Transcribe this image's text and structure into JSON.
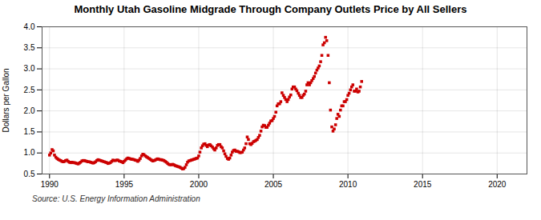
{
  "chart_data": {
    "type": "scatter",
    "title": "Monthly Utah Gasoline Midgrade Through Company Outlets Price by All Sellers",
    "ylabel": "Dollars per Gallon",
    "source": "Source: U.S. Energy Information Administration",
    "color": "#CC0000",
    "marker": "square",
    "grid": true,
    "xlim": [
      1989.5,
      2022
    ],
    "ylim": [
      0.5,
      4.0
    ],
    "xticks": [
      1990,
      1995,
      2000,
      2005,
      2010,
      2015,
      2020
    ],
    "yticks": [
      0.5,
      {
        "value": 1.0,
        "label": "1.0"
      },
      1.5,
      {
        "value": 2.0,
        "label": "2.0"
      },
      2.5,
      {
        "value": 3.0,
        "label": "3.0"
      },
      3.5,
      {
        "value": 4.0,
        "label": "4.0"
      }
    ],
    "x": [
      1990.0,
      1990.08,
      1990.17,
      1990.25,
      1990.33,
      1990.42,
      1990.5,
      1990.58,
      1990.67,
      1990.75,
      1990.83,
      1990.92,
      1991.0,
      1991.08,
      1991.17,
      1991.25,
      1991.33,
      1991.42,
      1991.5,
      1991.58,
      1991.67,
      1991.75,
      1991.83,
      1991.92,
      1992.0,
      1992.08,
      1992.17,
      1992.25,
      1992.33,
      1992.42,
      1992.5,
      1992.58,
      1992.67,
      1992.75,
      1992.83,
      1992.92,
      1993.0,
      1993.08,
      1993.17,
      1993.25,
      1993.33,
      1993.42,
      1993.5,
      1993.58,
      1993.67,
      1993.75,
      1993.83,
      1993.92,
      1994.0,
      1994.08,
      1994.17,
      1994.25,
      1994.33,
      1994.42,
      1994.5,
      1994.58,
      1994.67,
      1994.75,
      1994.83,
      1994.92,
      1995.0,
      1995.08,
      1995.17,
      1995.25,
      1995.33,
      1995.42,
      1995.5,
      1995.58,
      1995.67,
      1995.75,
      1995.83,
      1995.92,
      1996.0,
      1996.08,
      1996.17,
      1996.25,
      1996.33,
      1996.42,
      1996.5,
      1996.58,
      1996.67,
      1996.75,
      1996.83,
      1996.92,
      1997.0,
      1997.08,
      1997.17,
      1997.25,
      1997.33,
      1997.42,
      1997.5,
      1997.58,
      1997.67,
      1997.75,
      1997.83,
      1997.92,
      1998.0,
      1998.08,
      1998.17,
      1998.25,
      1998.33,
      1998.42,
      1998.5,
      1998.58,
      1998.67,
      1998.75,
      1998.83,
      1998.92,
      1999.0,
      1999.08,
      1999.17,
      1999.25,
      1999.33,
      1999.42,
      1999.5,
      1999.58,
      1999.67,
      1999.75,
      1999.83,
      1999.92,
      2000.0,
      2000.08,
      2000.17,
      2000.25,
      2000.33,
      2000.42,
      2000.5,
      2000.58,
      2000.67,
      2000.75,
      2000.83,
      2000.92,
      2001.0,
      2001.08,
      2001.17,
      2001.25,
      2001.33,
      2001.42,
      2001.5,
      2001.58,
      2001.67,
      2001.75,
      2001.83,
      2001.92,
      2002.0,
      2002.08,
      2002.17,
      2002.25,
      2002.33,
      2002.42,
      2002.5,
      2002.58,
      2002.67,
      2002.75,
      2002.83,
      2002.92,
      2003.0,
      2003.08,
      2003.17,
      2003.25,
      2003.33,
      2003.42,
      2003.5,
      2003.58,
      2003.67,
      2003.75,
      2003.83,
      2003.92,
      2004.0,
      2004.08,
      2004.17,
      2004.25,
      2004.33,
      2004.42,
      2004.5,
      2004.58,
      2004.67,
      2004.75,
      2004.83,
      2004.92,
      2005.0,
      2005.08,
      2005.17,
      2005.25,
      2005.33,
      2005.42,
      2005.5,
      2005.58,
      2005.67,
      2005.75,
      2005.83,
      2005.92,
      2006.0,
      2006.08,
      2006.17,
      2006.25,
      2006.33,
      2006.42,
      2006.5,
      2006.58,
      2006.67,
      2006.75,
      2006.83,
      2006.92,
      2007.0,
      2007.08,
      2007.17,
      2007.25,
      2007.33,
      2007.42,
      2007.5,
      2007.58,
      2007.67,
      2007.75,
      2007.83,
      2007.92,
      2008.0,
      2008.08,
      2008.17,
      2008.25,
      2008.33,
      2008.42,
      2008.5,
      2008.58,
      2008.67,
      2008.75,
      2008.83,
      2008.92,
      2009.0,
      2009.08,
      2009.17,
      2009.25,
      2009.33,
      2009.42,
      2009.5,
      2009.58,
      2009.67,
      2009.75,
      2009.83,
      2009.92,
      2010.0,
      2010.08,
      2010.17,
      2010.25,
      2010.33,
      2010.42,
      2010.5,
      2010.58,
      2010.67,
      2010.75,
      2010.83,
      2010.92
    ],
    "values": [
      0.95,
      1.0,
      1.08,
      1.05,
      0.95,
      0.9,
      0.87,
      0.85,
      0.83,
      0.82,
      0.8,
      0.79,
      0.8,
      0.82,
      0.83,
      0.8,
      0.78,
      0.77,
      0.78,
      0.77,
      0.77,
      0.76,
      0.75,
      0.74,
      0.76,
      0.78,
      0.81,
      0.82,
      0.82,
      0.81,
      0.8,
      0.79,
      0.79,
      0.78,
      0.77,
      0.76,
      0.77,
      0.79,
      0.82,
      0.84,
      0.83,
      0.82,
      0.81,
      0.8,
      0.79,
      0.78,
      0.77,
      0.75,
      0.76,
      0.77,
      0.8,
      0.83,
      0.82,
      0.82,
      0.83,
      0.83,
      0.81,
      0.8,
      0.79,
      0.77,
      0.8,
      0.83,
      0.86,
      0.88,
      0.87,
      0.86,
      0.85,
      0.85,
      0.84,
      0.83,
      0.82,
      0.8,
      0.83,
      0.87,
      0.93,
      0.97,
      0.96,
      0.93,
      0.91,
      0.89,
      0.87,
      0.85,
      0.83,
      0.81,
      0.82,
      0.83,
      0.85,
      0.86,
      0.85,
      0.84,
      0.84,
      0.83,
      0.82,
      0.8,
      0.78,
      0.75,
      0.73,
      0.72,
      0.72,
      0.73,
      0.72,
      0.7,
      0.69,
      0.68,
      0.67,
      0.66,
      0.64,
      0.62,
      0.63,
      0.66,
      0.72,
      0.78,
      0.81,
      0.82,
      0.83,
      0.84,
      0.85,
      0.86,
      0.87,
      0.88,
      0.93,
      1.02,
      1.12,
      1.17,
      1.21,
      1.22,
      1.18,
      1.15,
      1.19,
      1.2,
      1.17,
      1.14,
      1.1,
      1.07,
      1.12,
      1.18,
      1.2,
      1.2,
      1.15,
      1.12,
      1.05,
      0.98,
      0.92,
      0.87,
      0.85,
      0.88,
      0.95,
      1.02,
      1.06,
      1.07,
      1.04,
      1.04,
      1.03,
      1.01,
      1.01,
      1.02,
      1.07,
      1.12,
      1.22,
      1.38,
      1.32,
      1.22,
      1.2,
      1.23,
      1.27,
      1.28,
      1.3,
      1.32,
      1.37,
      1.42,
      1.52,
      1.62,
      1.66,
      1.65,
      1.61,
      1.61,
      1.66,
      1.71,
      1.76,
      1.77,
      1.82,
      1.87,
      1.97,
      2.12,
      2.17,
      2.17,
      2.22,
      2.43,
      2.37,
      2.32,
      2.27,
      2.22,
      2.27,
      2.33,
      2.38,
      2.52,
      2.57,
      2.57,
      2.52,
      2.48,
      2.42,
      2.37,
      2.32,
      2.32,
      2.37,
      2.4,
      2.47,
      2.62,
      2.67,
      2.62,
      2.67,
      2.72,
      2.77,
      2.82,
      2.9,
      2.97,
      3.02,
      3.07,
      3.17,
      3.32,
      3.57,
      3.62,
      3.75,
      3.67,
      3.32,
      2.67,
      2.02,
      1.62,
      1.52,
      1.57,
      1.67,
      1.82,
      1.92,
      1.87,
      2.02,
      2.12,
      2.12,
      2.22,
      2.22,
      2.27,
      2.37,
      2.42,
      2.5,
      2.57,
      2.62,
      2.47,
      2.47,
      2.52,
      2.45,
      2.47,
      2.57,
      2.7
    ]
  }
}
